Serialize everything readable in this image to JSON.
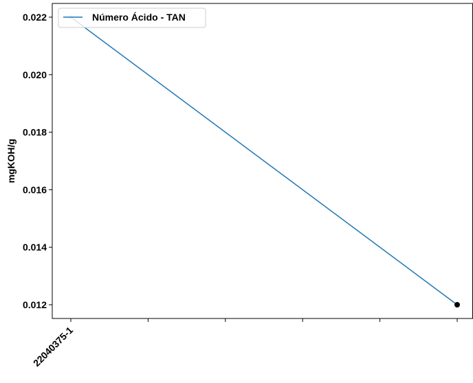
{
  "chart_data": {
    "type": "line",
    "title": "",
    "xlabel": "",
    "ylabel": "mgKOH/g",
    "categories": [
      "22040375-1",
      "",
      "",
      "",
      "",
      ""
    ],
    "series": [
      {
        "name": "Número Ácido - TAN",
        "points": [
          {
            "x_index": 0,
            "y": 0.022
          },
          {
            "x_index": 5,
            "y": 0.012
          }
        ],
        "color": "#1f77b4",
        "end_marker_color": "#000000"
      }
    ],
    "yticks": [
      "0.012",
      "0.014",
      "0.016",
      "0.018",
      "0.020",
      "0.022"
    ],
    "ylim": [
      0.0115,
      0.0225
    ],
    "grid": false,
    "legend": "top-left"
  }
}
